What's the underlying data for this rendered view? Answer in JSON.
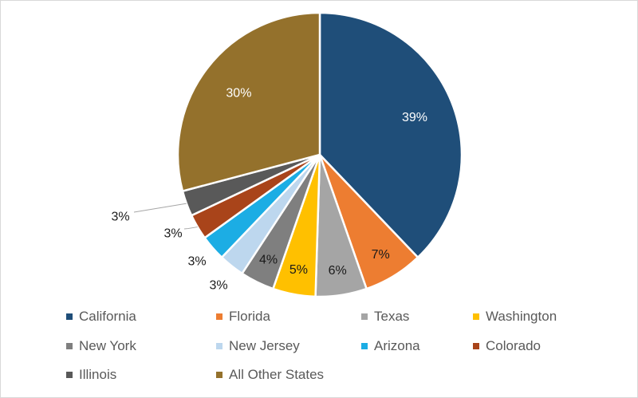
{
  "chart_data": {
    "type": "pie",
    "slices": [
      {
        "name": "California",
        "value": 39,
        "label": "39%",
        "color": "#1f4e79"
      },
      {
        "name": "Florida",
        "value": 7,
        "label": "7%",
        "color": "#ed7d31"
      },
      {
        "name": "Texas",
        "value": 6,
        "label": "6%",
        "color": "#a5a5a5"
      },
      {
        "name": "Washington",
        "value": 5,
        "label": "5%",
        "color": "#ffc000"
      },
      {
        "name": "New York",
        "value": 4,
        "label": "4%",
        "color": "#7f7f7f"
      },
      {
        "name": "New Jersey",
        "value": 3,
        "label": "3%",
        "color": "#bdd7ee"
      },
      {
        "name": "Arizona",
        "value": 3,
        "label": "3%",
        "color": "#1cade4"
      },
      {
        "name": "Colorado",
        "value": 3,
        "label": "3%",
        "color": "#a9441a"
      },
      {
        "name": "Illinois",
        "value": 3,
        "label": "3%",
        "color": "#595959"
      },
      {
        "name": "All Other States",
        "value": 30,
        "label": "30%",
        "color": "#94712c"
      }
    ],
    "legend_position": "bottom",
    "start_angle": "top, clockwise"
  }
}
